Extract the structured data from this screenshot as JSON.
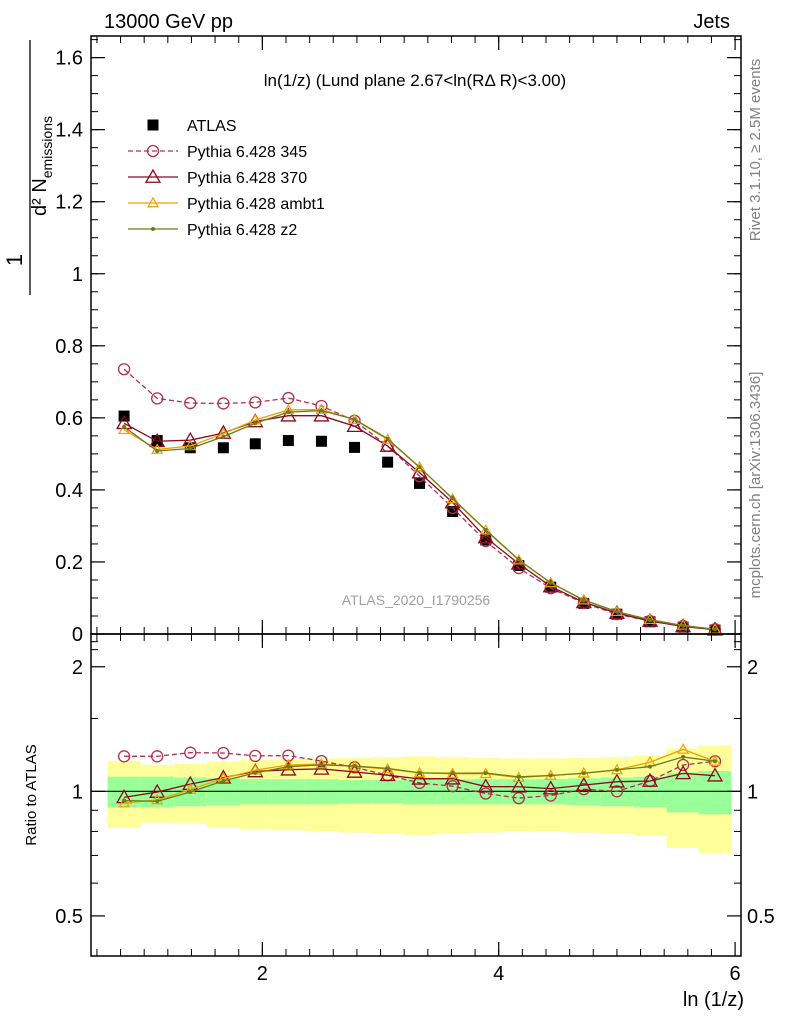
{
  "header": {
    "left": "13000 GeV pp",
    "right": "Jets"
  },
  "plot_title": "ln(1/z) (Lund plane 2.67<ln(RΔ R)<3.00)",
  "watermark": "ATLAS_2020_I1790256",
  "side_labels": {
    "rivet": "Rivet 3.1.10, ≥ 2.5M events",
    "mcplots": "mcplots.cern.ch [arXiv:1306.3436]"
  },
  "ylabel_top": "1/N_jets d² N_emissions / dln (R/Δ R) dln (1/z)",
  "ylabel_ratio": "Ratio to ATLAS",
  "xlabel": "ln (1/z)",
  "colors": {
    "atlas": "#000000",
    "p345": "#b03050",
    "p370": "#8b0a1e",
    "ambt1": "#f0a000",
    "z2": "#6b7d1a",
    "band_inner": "#99ff99",
    "band_outer": "#ffff99"
  },
  "chart_data": [
    {
      "type": "scatter",
      "title": "ln(1/z) (Lund plane 2.67<ln(RΔ R)<3.00)",
      "xlim": [
        0.55,
        6.05
      ],
      "ylim": [
        0,
        1.66
      ],
      "x_ticks": [
        2,
        4,
        6
      ],
      "y_ticks": [
        0,
        0.2,
        0.4,
        0.6,
        0.8,
        1,
        1.2,
        1.4,
        1.6
      ],
      "y_tick_labels": [
        "0",
        "0.2",
        "0.4",
        "0.6",
        "0.8",
        "1",
        "1.2",
        "1.4",
        "1.6"
      ],
      "x": [
        0.83,
        1.11,
        1.39,
        1.67,
        1.94,
        2.22,
        2.5,
        2.78,
        3.06,
        3.33,
        3.61,
        3.89,
        4.17,
        4.44,
        4.72,
        5.0,
        5.28,
        5.56,
        5.83
      ],
      "series": [
        {
          "name": "ATLAS",
          "key": "atlas",
          "style": "square",
          "values": [
            0.605,
            0.537,
            0.517,
            0.517,
            0.528,
            0.537,
            0.535,
            0.518,
            0.477,
            0.418,
            0.34,
            0.261,
            0.19,
            0.13,
            0.085,
            0.055,
            0.034,
            0.019,
            0.011
          ]
        },
        {
          "name": "Pythia 6.428 345",
          "key": "p345",
          "style": "circle-dashed",
          "values": [
            0.735,
            0.654,
            0.641,
            0.64,
            0.643,
            0.655,
            0.633,
            0.592,
            0.522,
            0.438,
            0.35,
            0.258,
            0.183,
            0.127,
            0.086,
            0.055,
            0.036,
            0.022,
            0.013
          ]
        },
        {
          "name": "Pythia 6.428 370",
          "key": "p370",
          "style": "triangle",
          "values": [
            0.585,
            0.535,
            0.538,
            0.558,
            0.59,
            0.606,
            0.606,
            0.577,
            0.522,
            0.448,
            0.365,
            0.268,
            0.195,
            0.132,
            0.088,
            0.058,
            0.036,
            0.021,
            0.012
          ]
        },
        {
          "name": "Pythia 6.428 ambt1",
          "key": "ambt1",
          "style": "triangle-small",
          "values": [
            0.567,
            0.512,
            0.522,
            0.556,
            0.594,
            0.622,
            0.623,
            0.595,
            0.54,
            0.463,
            0.375,
            0.288,
            0.205,
            0.142,
            0.094,
            0.062,
            0.04,
            0.024,
            0.013
          ]
        },
        {
          "name": "Pythia 6.428 z2",
          "key": "z2",
          "style": "dot",
          "values": [
            0.575,
            0.508,
            0.515,
            0.548,
            0.585,
            0.616,
            0.62,
            0.596,
            0.542,
            0.463,
            0.376,
            0.289,
            0.206,
            0.142,
            0.094,
            0.062,
            0.039,
            0.023,
            0.013
          ]
        }
      ]
    },
    {
      "type": "line",
      "ylabel": "Ratio to ATLAS",
      "xlabel": "ln (1/z)",
      "xlim": [
        0.55,
        6.05
      ],
      "ylim": [
        0.4,
        2.4
      ],
      "y_scale": "log",
      "x_ticks": [
        2,
        4,
        6
      ],
      "y_ticks": [
        0.5,
        1,
        2
      ],
      "y_tick_labels": [
        "0.5",
        "1",
        "2"
      ],
      "x": [
        0.83,
        1.11,
        1.39,
        1.67,
        1.94,
        2.22,
        2.5,
        2.78,
        3.06,
        3.33,
        3.61,
        3.89,
        4.17,
        4.44,
        4.72,
        5.0,
        5.28,
        5.56,
        5.83
      ],
      "bins_edges": [
        0.69,
        0.97,
        1.25,
        1.53,
        1.81,
        2.08,
        2.36,
        2.64,
        2.92,
        3.19,
        3.47,
        3.75,
        4.03,
        4.31,
        4.58,
        4.86,
        5.14,
        5.42,
        5.69,
        5.97
      ],
      "band_inner_half_width": [
        0.085,
        0.085,
        0.08,
        0.075,
        0.07,
        0.07,
        0.07,
        0.065,
        0.065,
        0.07,
        0.07,
        0.07,
        0.07,
        0.07,
        0.075,
        0.08,
        0.085,
        0.11,
        0.12
      ],
      "band_outer_half_width": [
        0.185,
        0.16,
        0.165,
        0.18,
        0.19,
        0.195,
        0.2,
        0.205,
        0.21,
        0.215,
        0.21,
        0.205,
        0.2,
        0.2,
        0.205,
        0.21,
        0.22,
        0.27,
        0.29
      ],
      "series": [
        {
          "name": "Pythia 6.428 345",
          "key": "p345",
          "style": "circle-dashed",
          "values": [
            1.215,
            1.215,
            1.24,
            1.238,
            1.218,
            1.22,
            1.183,
            1.143,
            1.094,
            1.048,
            1.029,
            0.988,
            0.963,
            0.977,
            1.012,
            1.0,
            1.059,
            1.158,
            1.182
          ]
        },
        {
          "name": "Pythia 6.428 370",
          "key": "p370",
          "style": "triangle",
          "values": [
            0.967,
            0.996,
            1.041,
            1.079,
            1.117,
            1.128,
            1.133,
            1.114,
            1.094,
            1.072,
            1.073,
            1.027,
            1.026,
            1.015,
            1.035,
            1.055,
            1.059,
            1.105,
            1.091
          ]
        },
        {
          "name": "Pythia 6.428 ambt1",
          "key": "ambt1",
          "style": "triangle-small",
          "values": [
            0.937,
            0.953,
            1.01,
            1.075,
            1.125,
            1.158,
            1.164,
            1.149,
            1.132,
            1.108,
            1.103,
            1.103,
            1.079,
            1.092,
            1.106,
            1.127,
            1.176,
            1.263,
            1.182
          ]
        },
        {
          "name": "Pythia 6.428 z2",
          "key": "z2",
          "style": "dot",
          "values": [
            0.95,
            0.946,
            0.996,
            1.06,
            1.108,
            1.147,
            1.159,
            1.151,
            1.136,
            1.108,
            1.106,
            1.107,
            1.084,
            1.092,
            1.106,
            1.127,
            1.147,
            1.211,
            1.182
          ]
        }
      ]
    }
  ]
}
